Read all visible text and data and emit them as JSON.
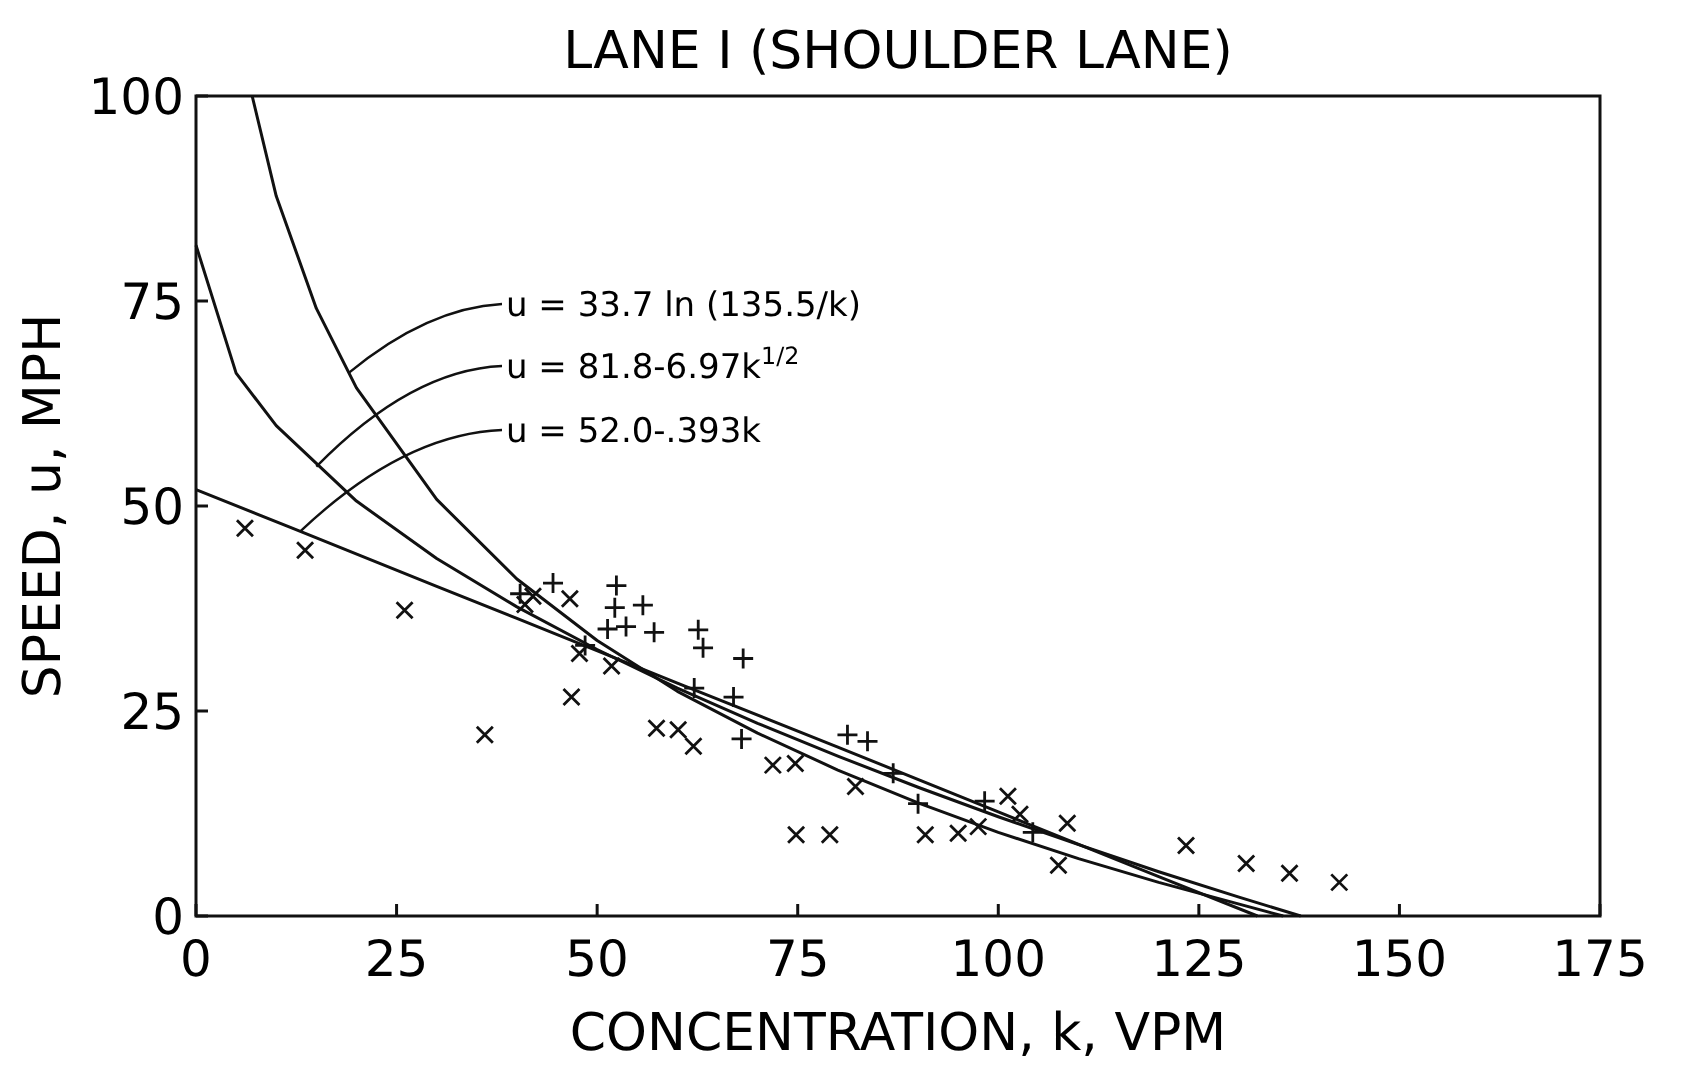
{
  "chart_data": {
    "type": "scatter",
    "title": "LANE I (SHOULDER LANE)",
    "xlabel": "CONCENTRATION, k, VPM",
    "ylabel": "SPEED, u, MPH",
    "xlim": [
      0,
      175
    ],
    "ylim": [
      0,
      100
    ],
    "xticks": [
      0,
      25,
      50,
      75,
      100,
      125,
      150,
      175
    ],
    "yticks": [
      0,
      25,
      50,
      75,
      100
    ],
    "grid": false,
    "series": [
      {
        "marker": "cross",
        "color": "#111111",
        "x": [
          6.1,
          13.6,
          26,
          36,
          41,
          42,
          46.6,
          47.8,
          51.8,
          46.8,
          57.4,
          60.1,
          62,
          71.9,
          74.7,
          74.8,
          79,
          82.2,
          90.9,
          95,
          97.5,
          101.2,
          102.7,
          108.6,
          107.5,
          123.4,
          130.9,
          136.3,
          142.5
        ],
        "values": [
          47.3,
          44.6,
          37.3,
          22.1,
          38,
          39,
          38.7,
          32,
          30.5,
          26.7,
          22.9,
          22.7,
          20.7,
          18.4,
          18.6,
          9.9,
          9.9,
          15.8,
          9.9,
          10.1,
          10.9,
          14.6,
          12.4,
          11.3,
          6.2,
          8.6,
          6.4,
          5.2,
          4.1
        ]
      },
      {
        "marker": "plus",
        "color": "#111111",
        "x": [
          40.4,
          44.5,
          48.5,
          52.4,
          52.2,
          55.7,
          53.6,
          57.1,
          51.3,
          62.1,
          62.6,
          63.2,
          68.2,
          67,
          68,
          81.2,
          83.7,
          86.9,
          90,
          98.3,
          104.3
        ],
        "values": [
          39.3,
          40.6,
          33,
          40.3,
          37.6,
          37.9,
          35.3,
          34.6,
          35,
          27.8,
          34.9,
          32.7,
          31.4,
          26.7,
          21.6,
          22.1,
          21.3,
          17.4,
          13.7,
          14,
          10.2
        ]
      },
      {
        "type": "line",
        "marker": "none",
        "color": "#111111",
        "x": [
          7,
          10,
          15,
          20,
          30,
          40,
          50,
          60,
          70,
          80,
          90,
          100,
          110,
          120,
          135.5
        ],
        "values": [
          100,
          87.8,
          74.1,
          64.4,
          50.8,
          41.1,
          33.6,
          27.4,
          22.3,
          17.8,
          13.8,
          10.2,
          7,
          4.1,
          0
        ]
      },
      {
        "type": "line",
        "marker": "none",
        "color": "#111111",
        "x": [
          0,
          5,
          10,
          20,
          30,
          40,
          50,
          60,
          70,
          80,
          90,
          100,
          110,
          120,
          130,
          137.7
        ],
        "values": [
          81.8,
          66.2,
          59.8,
          50.6,
          43.6,
          37.7,
          32.5,
          27.8,
          23.5,
          19.5,
          15.7,
          12.1,
          8.7,
          5.4,
          2.3,
          0
        ]
      },
      {
        "type": "line",
        "marker": "none",
        "color": "#111111",
        "x": [
          0,
          12,
          30,
          40,
          60,
          80,
          100,
          120,
          132.3
        ],
        "values": [
          52,
          47.3,
          40.2,
          36.3,
          28.4,
          20.6,
          12.7,
          4.8,
          0
        ]
      }
    ],
    "annotations": [
      {
        "text": "u = 33.7 ln (135.5/k)",
        "x": 19,
        "y": 66.2
      },
      {
        "text": "u = 81.8-6.97k$^{1/2}$",
        "x": 15,
        "y": 54.8
      },
      {
        "text": "u = 52.0-.393k",
        "x": 13,
        "y": 46.9
      }
    ]
  }
}
